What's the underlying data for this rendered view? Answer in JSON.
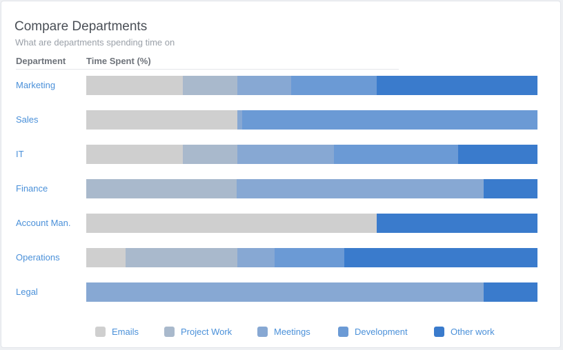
{
  "header": {
    "title": "Compare Departments",
    "subtitle": "What are departments spending time on",
    "col_department": "Department",
    "col_time": "Time Spent (%)"
  },
  "legend": [
    {
      "label": "Emails",
      "color": "#cfcfcf"
    },
    {
      "label": "Project Work",
      "color": "#a9b9cc"
    },
    {
      "label": "Meetings",
      "color": "#87a8d3"
    },
    {
      "label": "Development",
      "color": "#6b9ad5"
    },
    {
      "label": "Other work",
      "color": "#3a7bcc"
    }
  ],
  "chart_data": {
    "type": "bar",
    "orientation": "horizontal",
    "stacked": true,
    "title": "Compare Departments",
    "subtitle": "What are departments spending time on",
    "xlabel": "Time Spent (%)",
    "ylabel": "Department",
    "xlim": [
      0,
      100
    ],
    "categories": [
      "Marketing",
      "Sales",
      "IT",
      "Finance",
      "Account Man.",
      "Operations",
      "Legal"
    ],
    "series": [
      {
        "name": "Emails",
        "values": [
          21.4,
          33.5,
          21.4,
          0,
          64.4,
          8.7,
          0
        ]
      },
      {
        "name": "Project Work",
        "values": [
          12.1,
          0,
          12.1,
          33.3,
          0,
          24.8,
          0
        ]
      },
      {
        "name": "Meetings",
        "values": [
          11.9,
          1.0,
          21.4,
          54.7,
          0,
          8.3,
          88.0
        ]
      },
      {
        "name": "Development",
        "values": [
          19.0,
          65.5,
          27.5,
          0,
          0,
          15.4,
          0
        ]
      },
      {
        "name": "Other work",
        "values": [
          35.6,
          0,
          17.6,
          12.0,
          35.6,
          42.8,
          12.0
        ]
      }
    ],
    "grid": false,
    "legend_position": "bottom"
  }
}
